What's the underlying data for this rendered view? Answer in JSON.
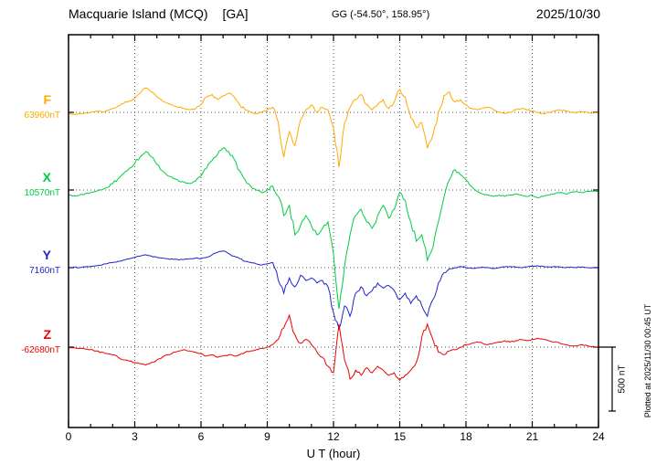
{
  "header": {
    "title": "Macquarie Island (MCQ)",
    "agency": "[GA]",
    "coords": "GG (-54.50°, 158.95°)",
    "date": "2025/10/30"
  },
  "chart_data": {
    "type": "line",
    "title": "Macquarie Island (MCQ) [GA]",
    "subtitle": "GG (-54.50°, 158.95°)",
    "date": "2025/10/30",
    "xlabel": "U T (hour)",
    "x_range": [
      0,
      24
    ],
    "x_ticks": [
      0,
      3,
      6,
      9,
      12,
      15,
      18,
      21,
      24
    ],
    "x_tick_labels": [
      "0",
      "3",
      "6",
      "9",
      "12",
      "15",
      "18",
      "21",
      "24"
    ],
    "x_step_hours": 0.25,
    "grid": "dotted 3-hour vertical lines and per-channel dotted baselines",
    "legend_position": "left channel labels",
    "scale_bar_label": "500 nT",
    "scale_bar_nT": 500,
    "plotted_at": "Plotted at 2025/11/30 00:45 UT",
    "series": [
      {
        "name": "F",
        "baseline_label": "63960nT",
        "baseline_nT": 63960,
        "color": "#ffaa00",
        "deviations_nT": [
          -10,
          -15,
          -10,
          -5,
          0,
          10,
          5,
          15,
          30,
          50,
          70,
          90,
          110,
          150,
          190,
          160,
          120,
          90,
          70,
          50,
          40,
          30,
          20,
          30,
          60,
          120,
          140,
          100,
          130,
          150,
          120,
          60,
          20,
          0,
          -10,
          0,
          20,
          40,
          -80,
          -350,
          -150,
          -260,
          -60,
          20,
          60,
          0,
          40,
          20,
          -120,
          -430,
          -80,
          40,
          100,
          140,
          60,
          20,
          60,
          100,
          30,
          80,
          180,
          120,
          -40,
          -120,
          -80,
          -280,
          -180,
          0,
          130,
          160,
          80,
          100,
          60,
          30,
          20,
          30,
          40,
          20,
          0,
          -10,
          0,
          20,
          30,
          20,
          10,
          0,
          -10,
          0,
          10,
          20,
          10,
          0,
          -5,
          5,
          0,
          -5,
          0
        ]
      },
      {
        "name": "X",
        "baseline_label": "10570nT",
        "baseline_nT": 10570,
        "color": "#00cc44",
        "deviations_nT": [
          -40,
          -45,
          -40,
          -30,
          -20,
          -10,
          0,
          20,
          50,
          90,
          130,
          170,
          210,
          260,
          300,
          260,
          200,
          150,
          110,
          90,
          70,
          60,
          50,
          70,
          110,
          170,
          230,
          280,
          330,
          300,
          240,
          150,
          80,
          30,
          0,
          -20,
          0,
          30,
          -50,
          -200,
          -120,
          -350,
          -280,
          -200,
          -280,
          -350,
          -300,
          -250,
          -500,
          -930,
          -600,
          -350,
          -200,
          -150,
          -250,
          -300,
          -200,
          -120,
          -220,
          -150,
          -20,
          -80,
          -250,
          -400,
          -350,
          -550,
          -450,
          -250,
          -60,
          80,
          160,
          120,
          80,
          30,
          -10,
          -30,
          -40,
          -50,
          -40,
          -50,
          -40,
          -30,
          -40,
          -50,
          -40,
          -60,
          -50,
          -40,
          -30,
          -20,
          -30,
          -20,
          -10,
          -20,
          -10,
          -10,
          -10
        ]
      },
      {
        "name": "Y",
        "baseline_label": "7160nT",
        "baseline_nT": 7160,
        "color": "#2222cc",
        "deviations_nT": [
          0,
          5,
          0,
          5,
          10,
          15,
          20,
          30,
          40,
          50,
          60,
          70,
          80,
          90,
          100,
          90,
          80,
          75,
          70,
          65,
          60,
          65,
          70,
          75,
          70,
          80,
          100,
          120,
          130,
          110,
          90,
          70,
          50,
          40,
          30,
          20,
          30,
          40,
          -100,
          -200,
          -80,
          -150,
          -60,
          -100,
          -80,
          -120,
          -100,
          -150,
          -350,
          -480,
          -300,
          -380,
          -200,
          -150,
          -220,
          -180,
          -120,
          -160,
          -140,
          -180,
          -250,
          -200,
          -280,
          -220,
          -300,
          -380,
          -250,
          -120,
          -40,
          -10,
          0,
          10,
          0,
          -5,
          0,
          5,
          0,
          -5,
          0,
          5,
          10,
          5,
          0,
          5,
          10,
          15,
          10,
          5,
          10,
          5,
          0,
          5,
          0,
          5,
          0,
          0,
          0
        ]
      },
      {
        "name": "Z",
        "baseline_label": "-62680nT",
        "baseline_nT": -62680,
        "color": "#ee0000",
        "deviations_nT": [
          0,
          -5,
          -10,
          -15,
          -20,
          -30,
          -40,
          -50,
          -60,
          -80,
          -100,
          -110,
          -120,
          -130,
          -140,
          -120,
          -100,
          -80,
          -60,
          -40,
          -30,
          -20,
          -30,
          -40,
          -50,
          -70,
          -60,
          -80,
          -70,
          -60,
          -70,
          -60,
          -40,
          -30,
          -20,
          -10,
          0,
          20,
          60,
          150,
          250,
          100,
          30,
          60,
          20,
          -40,
          -80,
          -150,
          -200,
          180,
          -100,
          -250,
          -180,
          -220,
          -160,
          -200,
          -150,
          -180,
          -220,
          -200,
          -260,
          -220,
          -180,
          -120,
          80,
          180,
          60,
          -40,
          -60,
          -30,
          -20,
          0,
          20,
          30,
          40,
          30,
          20,
          30,
          40,
          50,
          40,
          50,
          60,
          50,
          60,
          70,
          60,
          50,
          40,
          30,
          20,
          10,
          10,
          20,
          10,
          5,
          0
        ]
      }
    ]
  }
}
